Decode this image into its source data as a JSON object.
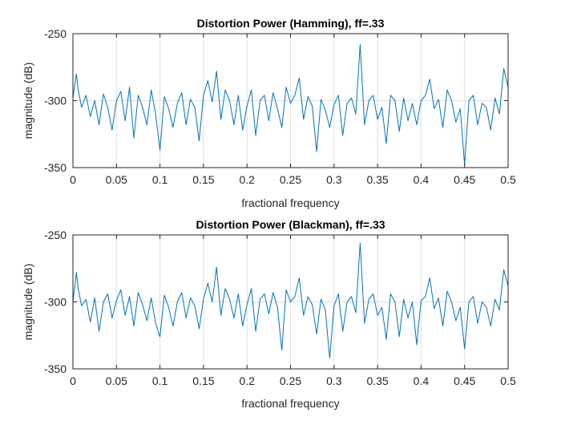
{
  "chart_data": [
    {
      "type": "line",
      "title": "Distortion Power (Hamming), ff=.33",
      "xlabel": "fractional frequency",
      "ylabel": "magnitude (dB)",
      "xlim": [
        0,
        0.5
      ],
      "ylim": [
        -350,
        -250
      ],
      "xticks": [
        0,
        0.05,
        0.1,
        0.15,
        0.2,
        0.25,
        0.3,
        0.35,
        0.4,
        0.45,
        0.5
      ],
      "xtick_labels": [
        "0",
        "0.05",
        "0.1",
        "0.15",
        "0.2",
        "0.25",
        "0.3",
        "0.35",
        "0.4",
        "0.45",
        "0.5"
      ],
      "yticks": [
        -350,
        -300,
        -250
      ],
      "ytick_labels": [
        "-350",
        "-300",
        "-250"
      ],
      "grid": true,
      "color": "#0072BD",
      "series": [
        {
          "x": [
            0,
            0.004,
            0.006,
            0.01,
            0.015,
            0.02,
            0.025,
            0.03,
            0.035,
            0.04,
            0.045,
            0.05,
            0.055,
            0.06,
            0.065,
            0.07,
            0.075,
            0.08,
            0.085,
            0.09,
            0.095,
            0.1,
            0.105,
            0.11,
            0.115,
            0.12,
            0.125,
            0.13,
            0.135,
            0.14,
            0.145,
            0.15,
            0.155,
            0.16,
            0.165,
            0.17,
            0.175,
            0.18,
            0.185,
            0.19,
            0.195,
            0.2,
            0.205,
            0.21,
            0.215,
            0.22,
            0.225,
            0.23,
            0.235,
            0.24,
            0.245,
            0.25,
            0.255,
            0.26,
            0.265,
            0.27,
            0.275,
            0.28,
            0.285,
            0.29,
            0.295,
            0.3,
            0.305,
            0.31,
            0.315,
            0.32,
            0.325,
            0.33,
            0.335,
            0.34,
            0.345,
            0.35,
            0.355,
            0.36,
            0.365,
            0.37,
            0.375,
            0.38,
            0.385,
            0.39,
            0.395,
            0.4,
            0.405,
            0.41,
            0.415,
            0.42,
            0.425,
            0.43,
            0.435,
            0.44,
            0.445,
            0.45,
            0.455,
            0.46,
            0.465,
            0.47,
            0.475,
            0.48,
            0.485,
            0.49,
            0.495,
            0.5
          ],
          "y": [
            -298,
            -280,
            -292,
            -305,
            -296,
            -312,
            -300,
            -318,
            -295,
            -305,
            -322,
            -300,
            -293,
            -315,
            -290,
            -328,
            -296,
            -305,
            -318,
            -292,
            -310,
            -337,
            -297,
            -306,
            -320,
            -302,
            -294,
            -318,
            -299,
            -305,
            -330,
            -296,
            -285,
            -301,
            -278,
            -314,
            -292,
            -300,
            -318,
            -296,
            -322,
            -304,
            -292,
            -326,
            -300,
            -296,
            -315,
            -294,
            -306,
            -320,
            -290,
            -302,
            -296,
            -283,
            -314,
            -297,
            -304,
            -338,
            -299,
            -307,
            -320,
            -303,
            -296,
            -326,
            -302,
            -298,
            -310,
            -258,
            -318,
            -300,
            -296,
            -314,
            -305,
            -332,
            -296,
            -300,
            -323,
            -298,
            -315,
            -302,
            -318,
            -300,
            -296,
            -284,
            -306,
            -299,
            -320,
            -292,
            -300,
            -316,
            -306,
            -348,
            -300,
            -296,
            -318,
            -302,
            -305,
            -322,
            -298,
            -310,
            -276,
            -290
          ]
        }
      ]
    },
    {
      "type": "line",
      "title": "Distortion Power (Blackman), ff=.33",
      "xlabel": "fractional frequency",
      "ylabel": "magnitude (dB)",
      "xlim": [
        0,
        0.5
      ],
      "ylim": [
        -350,
        -250
      ],
      "xticks": [
        0,
        0.05,
        0.1,
        0.15,
        0.2,
        0.25,
        0.3,
        0.35,
        0.4,
        0.45,
        0.5
      ],
      "xtick_labels": [
        "0",
        "0.05",
        "0.1",
        "0.15",
        "0.2",
        "0.25",
        "0.3",
        "0.35",
        "0.4",
        "0.45",
        "0.5"
      ],
      "yticks": [
        -350,
        -300,
        -250
      ],
      "ytick_labels": [
        "-350",
        "-300",
        "-250"
      ],
      "grid": true,
      "color": "#0072BD",
      "series": [
        {
          "x": [
            0,
            0.004,
            0.006,
            0.01,
            0.015,
            0.02,
            0.025,
            0.03,
            0.035,
            0.04,
            0.045,
            0.05,
            0.055,
            0.06,
            0.065,
            0.07,
            0.075,
            0.08,
            0.085,
            0.09,
            0.095,
            0.1,
            0.105,
            0.11,
            0.115,
            0.12,
            0.125,
            0.13,
            0.135,
            0.14,
            0.145,
            0.15,
            0.155,
            0.16,
            0.165,
            0.17,
            0.175,
            0.18,
            0.185,
            0.19,
            0.195,
            0.2,
            0.205,
            0.21,
            0.215,
            0.22,
            0.225,
            0.23,
            0.235,
            0.24,
            0.245,
            0.25,
            0.255,
            0.26,
            0.265,
            0.27,
            0.275,
            0.28,
            0.285,
            0.29,
            0.295,
            0.3,
            0.305,
            0.31,
            0.315,
            0.32,
            0.325,
            0.33,
            0.335,
            0.34,
            0.345,
            0.35,
            0.355,
            0.36,
            0.365,
            0.37,
            0.375,
            0.38,
            0.385,
            0.39,
            0.395,
            0.4,
            0.405,
            0.41,
            0.415,
            0.42,
            0.425,
            0.43,
            0.435,
            0.44,
            0.445,
            0.45,
            0.455,
            0.46,
            0.465,
            0.47,
            0.475,
            0.48,
            0.485,
            0.49,
            0.495,
            0.5
          ],
          "y": [
            -300,
            -278,
            -290,
            -303,
            -298,
            -315,
            -297,
            -322,
            -300,
            -294,
            -312,
            -299,
            -291,
            -310,
            -296,
            -318,
            -293,
            -302,
            -314,
            -297,
            -316,
            -326,
            -295,
            -304,
            -318,
            -300,
            -293,
            -312,
            -297,
            -303,
            -320,
            -298,
            -286,
            -300,
            -274,
            -310,
            -290,
            -298,
            -312,
            -294,
            -318,
            -302,
            -290,
            -322,
            -298,
            -294,
            -309,
            -293,
            -304,
            -336,
            -291,
            -300,
            -296,
            -282,
            -310,
            -296,
            -302,
            -324,
            -298,
            -306,
            -342,
            -303,
            -294,
            -322,
            -300,
            -296,
            -308,
            -256,
            -316,
            -298,
            -294,
            -310,
            -304,
            -328,
            -294,
            -300,
            -326,
            -298,
            -312,
            -300,
            -332,
            -299,
            -296,
            -282,
            -305,
            -297,
            -318,
            -292,
            -300,
            -314,
            -304,
            -335,
            -300,
            -296,
            -316,
            -300,
            -304,
            -318,
            -298,
            -306,
            -276,
            -288
          ]
        }
      ]
    }
  ]
}
